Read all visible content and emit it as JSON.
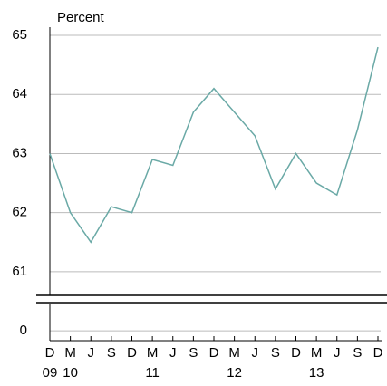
{
  "chart_data": {
    "type": "line",
    "y_label": "Percent",
    "categories": [
      "D",
      "M",
      "J",
      "S",
      "D",
      "M",
      "J",
      "S",
      "D",
      "M",
      "J",
      "S",
      "D",
      "M",
      "J",
      "S",
      "D"
    ],
    "x_group_labels": [
      "09",
      "10",
      null,
      null,
      null,
      "11",
      null,
      null,
      null,
      "12",
      null,
      null,
      null,
      "13",
      null,
      null,
      null
    ],
    "series": [
      {
        "name": "Percent",
        "color": "#6aa9a6",
        "values": [
          63.0,
          62.0,
          61.5,
          62.1,
          62.0,
          62.9,
          62.8,
          63.7,
          64.1,
          63.7,
          63.3,
          62.4,
          63.0,
          62.5,
          62.3,
          63.4,
          64.8
        ]
      }
    ],
    "ylim": [
      60.6,
      65
    ],
    "yticks": [
      61,
      62,
      63,
      64,
      65
    ],
    "ylim_lower": [
      -0.3,
      0.8
    ],
    "yticks_lower": [
      0
    ],
    "grid": true
  }
}
